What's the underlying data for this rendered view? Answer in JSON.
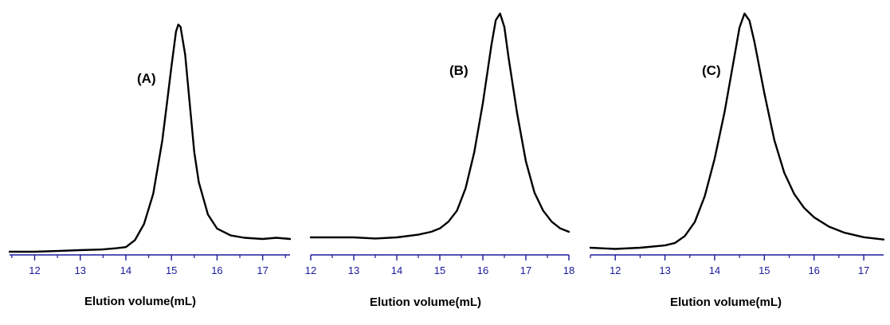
{
  "axis_color": "#1a1a9c",
  "curve_color": "#000000",
  "chart_data": [
    {
      "type": "line",
      "panel_label": "(A)",
      "xlabel": "Elution volume(mL)",
      "ylabel": "",
      "xlim": [
        11.45,
        17.6
      ],
      "ylim": [
        0,
        1.0
      ],
      "xticks": [
        12,
        13,
        14,
        15,
        16,
        17
      ],
      "grid": false,
      "series": [
        {
          "x": [
            11.45,
            12.0,
            12.5,
            13.0,
            13.5,
            13.8,
            14.0,
            14.2,
            14.4,
            14.6,
            14.8,
            14.9,
            15.0,
            15.1,
            15.15,
            15.2,
            15.3,
            15.4,
            15.5,
            15.6,
            15.8,
            16.0,
            16.3,
            16.6,
            17.0,
            17.3,
            17.6
          ],
          "y": [
            0.0,
            0.0,
            0.003,
            0.007,
            0.01,
            0.015,
            0.02,
            0.05,
            0.12,
            0.25,
            0.48,
            0.64,
            0.8,
            0.95,
            0.98,
            0.97,
            0.85,
            0.64,
            0.43,
            0.3,
            0.16,
            0.1,
            0.07,
            0.06,
            0.055,
            0.06,
            0.055
          ]
        }
      ]
    },
    {
      "type": "line",
      "panel_label": "(B)",
      "xlabel": "Elution volume(mL)",
      "ylabel": "",
      "xlim": [
        12.0,
        18.0
      ],
      "ylim": [
        0,
        1.0
      ],
      "xticks": [
        12,
        13,
        14,
        15,
        16,
        17,
        18
      ],
      "grid": false,
      "series": [
        {
          "x": [
            12.0,
            12.5,
            13.0,
            13.5,
            14.0,
            14.5,
            14.8,
            15.0,
            15.2,
            15.4,
            15.6,
            15.8,
            16.0,
            16.2,
            16.3,
            16.4,
            16.5,
            16.6,
            16.8,
            17.0,
            17.2,
            17.4,
            17.6,
            17.8,
            18.0
          ],
          "y": [
            0.0,
            0.0,
            0.0,
            -0.005,
            0.0,
            0.012,
            0.025,
            0.04,
            0.07,
            0.12,
            0.22,
            0.38,
            0.6,
            0.86,
            0.97,
            1.0,
            0.94,
            0.8,
            0.55,
            0.34,
            0.2,
            0.12,
            0.07,
            0.04,
            0.025
          ]
        }
      ]
    },
    {
      "type": "line",
      "panel_label": "(C)",
      "xlabel": "Elution volume(mL)",
      "ylabel": "",
      "xlim": [
        11.5,
        17.4
      ],
      "ylim": [
        0,
        1.0
      ],
      "xticks": [
        12,
        13,
        14,
        15,
        16,
        17
      ],
      "grid": false,
      "series": [
        {
          "x": [
            11.5,
            12.0,
            12.5,
            13.0,
            13.2,
            13.4,
            13.6,
            13.8,
            14.0,
            14.2,
            14.4,
            14.5,
            14.6,
            14.7,
            14.8,
            15.0,
            15.2,
            15.4,
            15.6,
            15.8,
            16.0,
            16.3,
            16.6,
            17.0,
            17.4
          ],
          "y": [
            0.0,
            -0.005,
            0.0,
            0.01,
            0.02,
            0.05,
            0.11,
            0.22,
            0.38,
            0.58,
            0.82,
            0.94,
            1.0,
            0.97,
            0.88,
            0.66,
            0.46,
            0.32,
            0.23,
            0.17,
            0.13,
            0.09,
            0.065,
            0.045,
            0.035
          ]
        }
      ]
    }
  ]
}
